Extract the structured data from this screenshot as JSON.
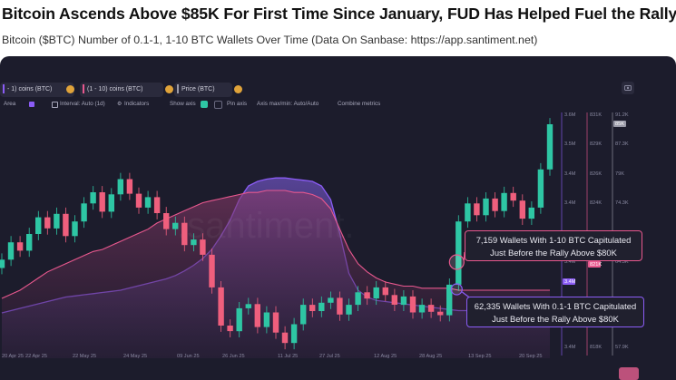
{
  "header": {
    "title": "Bitcoin Ascends Above $85K For First Time Since January, FUD Has Helped Fuel the Rally",
    "subtitle": "Bitcoin ($BTC) Number of 0.1-1, 1-10 BTC Wallets Over Time (Data On Sanbase: https://app.santiment.net)"
  },
  "toolbar": {
    "metric_chips": [
      {
        "label": "- 1) coins (BTC)",
        "color": "#8b5cf6"
      },
      {
        "label": "(1 - 10) coins (BTC)",
        "color": "#e8588e"
      },
      {
        "label": "Price (BTC)",
        "color": "#9a9aa8"
      }
    ],
    "options": {
      "area": "Area",
      "interval": "Interval: Auto (1d)",
      "indicators": "Indicators",
      "show_axis": "Show axis",
      "pin_axis": "Pin axis",
      "axis_max_min": "Axis max/min: Auto/Auto",
      "combine_metrics": "Combine metrics"
    },
    "camera_icon": "camera-icon"
  },
  "watermark": ".santiment.",
  "annotations": {
    "top": "7,159 Wallets With 1-10 BTC Capitulated Just Before the Rally Above $80K",
    "top_line1": "7,159 Wallets With 1-10 BTC Capitulated",
    "top_line2": "Just Before the Rally Above $80K",
    "bottom": "62,335 Wallets With 0.1-1 BTC Capitulated Just Before the Rally Above $80K",
    "bottom_line1": "62,335 Wallets With 0.1-1 BTC Capitulated",
    "bottom_line2": "Just Before the Rally Above $80K"
  },
  "chart_data": {
    "type": "line",
    "x_ticks": [
      "20 Apr 25",
      "22 Apr 25",
      "22 May 25",
      "24 May 25",
      "09 Jun 25",
      "26 Jun 25",
      "11 Jul 25",
      "27 Jul 25",
      "12 Aug 25",
      "28 Aug 25",
      "13 Sep 25",
      "20 Sep 25"
    ],
    "axes": {
      "wallets_0_1_to_1": {
        "ticks": [
          "3.6M",
          "3.5M",
          "3.4M",
          "3.4M",
          "3.4M",
          "3.4M",
          "3.4M"
        ],
        "marker": "3.4M",
        "color": "#8b5cf6"
      },
      "wallets_1_to_10": {
        "ticks": [
          "831K",
          "829K",
          "826K",
          "824K",
          "822K",
          "820K",
          "818K"
        ],
        "marker": "821K",
        "color": "#e8588e"
      },
      "price": {
        "ticks": [
          "91.2K",
          "87.3K",
          "79K",
          "74.3K",
          "69.3K",
          "64.3K",
          "57.9K"
        ],
        "marker": "85K",
        "color": "#9a9aa8"
      }
    },
    "series": [
      {
        "name": "- 1) coins (BTC)",
        "color": "#8b5cf6",
        "values": [
          3.41,
          3.412,
          3.414,
          3.416,
          3.418,
          3.42,
          3.422,
          3.424,
          3.425,
          3.426,
          3.427,
          3.428,
          3.429,
          3.43,
          3.432,
          3.434,
          3.436,
          3.438,
          3.44,
          3.443,
          3.447,
          3.452,
          3.458,
          3.466,
          3.478,
          3.492,
          3.51,
          3.522,
          3.526,
          3.528,
          3.529,
          3.529,
          3.528,
          3.527,
          3.526,
          3.522,
          3.51,
          3.48,
          3.445,
          3.43,
          3.424,
          3.421,
          3.42,
          3.419,
          3.418,
          3.417,
          3.416,
          3.415,
          3.414,
          3.413,
          3.412,
          3.412,
          3.412,
          3.411,
          3.411,
          3.41,
          3.41,
          3.41,
          3.41,
          3.41,
          3.41
        ]
      },
      {
        "name": "(1 - 10) coins (BTC)",
        "color": "#e8588e",
        "values": [
          821.6,
          821.8,
          822.0,
          822.3,
          822.6,
          822.9,
          823.1,
          823.3,
          823.5,
          823.7,
          823.9,
          824.0,
          824.2,
          824.4,
          824.6,
          824.8,
          825.0,
          825.3,
          825.5,
          825.7,
          825.9,
          826.1,
          826.3,
          826.4,
          826.5,
          826.6,
          826.7,
          826.8,
          826.8,
          826.9,
          826.9,
          826.9,
          826.8,
          826.8,
          826.7,
          826.5,
          826.0,
          825.0,
          824.0,
          823.3,
          822.9,
          822.6,
          822.4,
          822.3,
          822.2,
          822.2,
          822.1,
          822.1,
          822.1,
          822.1,
          822.0,
          822.0,
          822.0,
          822.0,
          822.0,
          822.0,
          822.0,
          822.0,
          822.0,
          822.0,
          822.0
        ]
      },
      {
        "name": "Price (BTC)",
        "color": "#2ec6a4",
        "values": [
          76.5,
          79.0,
          77.8,
          80.2,
          82.6,
          81.0,
          83.1,
          79.9,
          82.0,
          84.6,
          86.2,
          83.4,
          85.9,
          88.1,
          86.0,
          84.0,
          85.5,
          83.2,
          80.9,
          81.8,
          78.6,
          79.4,
          77.2,
          72.5,
          67.0,
          66.2,
          69.5,
          70.1,
          66.8,
          68.9,
          66.0,
          64.5,
          67.2,
          70.0,
          69.1,
          70.3,
          71.0,
          68.6,
          70.0,
          71.8,
          70.9,
          72.5,
          71.4,
          70.0,
          71.2,
          68.9,
          70.0,
          69.0,
          68.5,
          72.9,
          82.0,
          84.6,
          82.9,
          85.3,
          83.5,
          86.1,
          85.0,
          82.4,
          84.0,
          89.5,
          96.0
        ]
      }
    ],
    "callouts": [
      {
        "series": "(1 - 10) coins (BTC)",
        "value": 7159,
        "text": "7,159 Wallets With 1-10 BTC Capitulated"
      },
      {
        "series": "- 1) coins (BTC)",
        "value": 62335,
        "text": "62,335 Wallets With 0.1-1 BTC Capitulated"
      }
    ],
    "legend_placement": "top-left",
    "grid": false
  }
}
